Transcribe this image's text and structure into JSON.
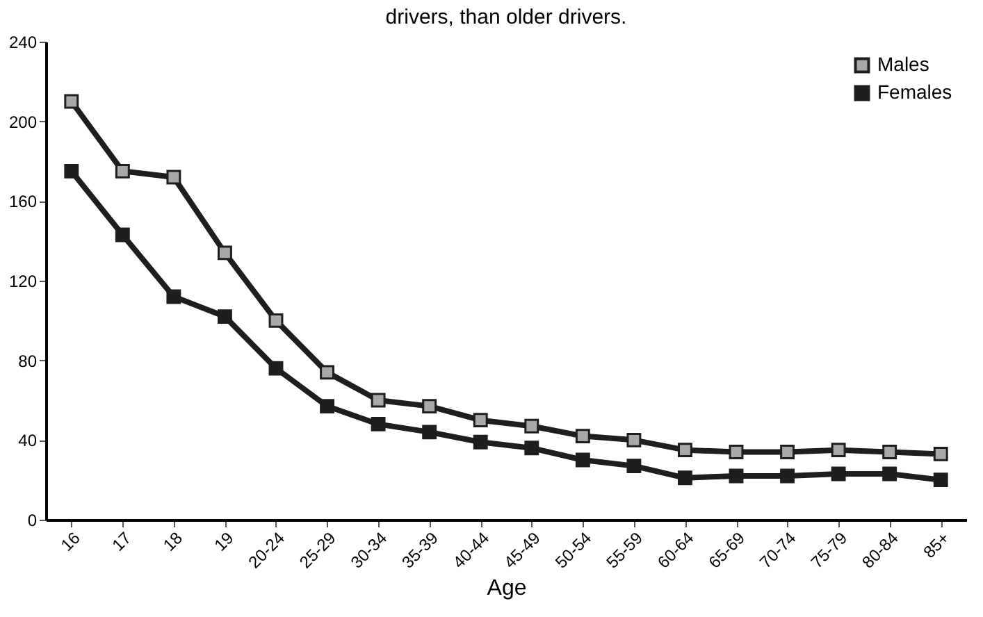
{
  "chart_data": {
    "type": "line",
    "title": "drivers, than older drivers.",
    "xlabel": "Age",
    "categories": [
      "16",
      "17",
      "18",
      "19",
      "20-24",
      "25-29",
      "30-34",
      "35-39",
      "40-44",
      "45-49",
      "50-54",
      "55-59",
      "60-64",
      "65-69",
      "70-74",
      "75-79",
      "80-84",
      "85+"
    ],
    "series": [
      {
        "name": "Males",
        "color": "#a8a8a8",
        "values": [
          210,
          175,
          172,
          134,
          100,
          74,
          60,
          57,
          50,
          47,
          42,
          40,
          35,
          34,
          34,
          35,
          34,
          33
        ]
      },
      {
        "name": "Females",
        "color": "#1e1e1e",
        "values": [
          175,
          143,
          112,
          102,
          76,
          57,
          48,
          44,
          39,
          36,
          30,
          27,
          21,
          22,
          22,
          23,
          23,
          20
        ]
      }
    ],
    "ylim": [
      0,
      240
    ],
    "yticks": [
      0,
      40,
      80,
      120,
      160,
      200,
      240
    ],
    "grid": false,
    "legend": "top right",
    "marker": "square",
    "line_style": "solid"
  }
}
